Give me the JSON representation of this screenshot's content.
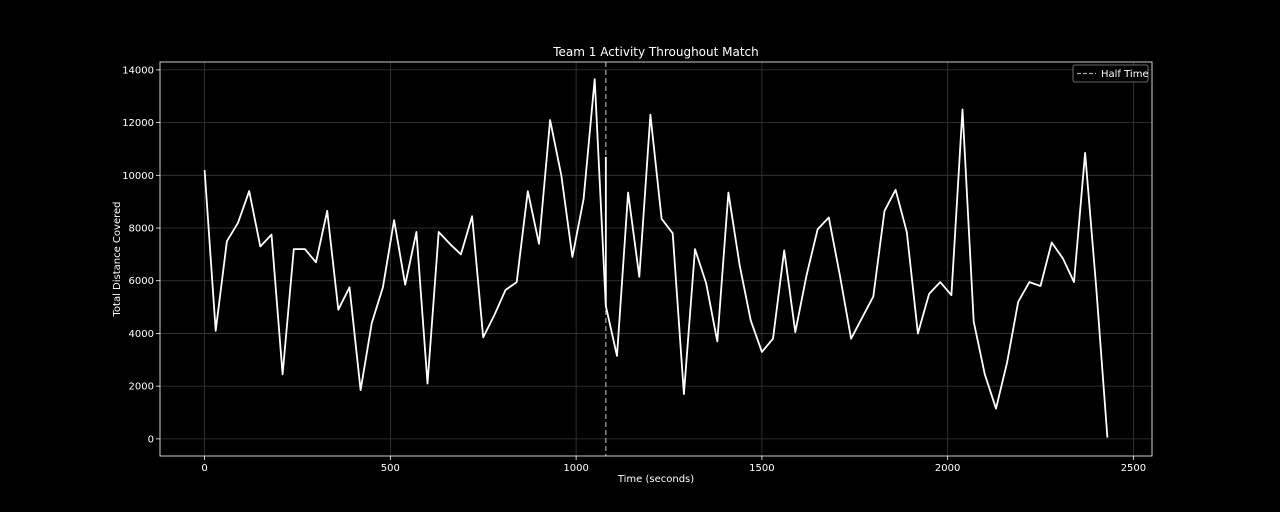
{
  "chart_data": {
    "type": "line",
    "title": "Team 1 Activity Throughout Match",
    "xlabel": "Time (seconds)",
    "ylabel": "Total Distance Covered",
    "xlim": [
      -120,
      2550
    ],
    "ylim": [
      -650,
      14300
    ],
    "xticks": [
      0,
      500,
      1000,
      1500,
      2000,
      2500
    ],
    "yticks": [
      0,
      2000,
      4000,
      6000,
      8000,
      10000,
      12000,
      14000
    ],
    "grid": true,
    "legend_position": "top-right",
    "colors": {
      "background": "#000000",
      "line": "#ffffff",
      "grid": "#3a3a3a",
      "half_time": "#aaaaaa"
    },
    "series": [
      {
        "x": [
          0,
          30,
          60,
          90,
          120,
          150,
          180,
          210,
          240,
          270,
          300,
          330,
          360,
          390,
          420,
          450,
          480,
          510,
          540,
          570,
          600,
          630,
          660,
          690,
          720,
          750,
          780,
          810,
          840,
          870,
          900,
          930,
          960,
          990,
          1020,
          1050,
          1080,
          1110,
          1140,
          1170,
          1200,
          1230,
          1260,
          1290,
          1320,
          1350,
          1380,
          1410,
          1440,
          1470,
          1500,
          1530,
          1560,
          1590,
          1620,
          1650,
          1680,
          1710,
          1740,
          1770,
          1800,
          1830,
          1860,
          1890,
          1920,
          1950,
          1980,
          2010,
          2040,
          2070,
          2100,
          2130,
          2160,
          2190,
          2220,
          2250,
          2280,
          2310,
          2340,
          2370,
          2400,
          2430
        ],
        "values": [
          10200,
          4100,
          7500,
          8200,
          9400,
          7300,
          7750,
          2450,
          7200,
          7200,
          6700,
          8650,
          4900,
          5750,
          1850,
          4400,
          5750,
          8300,
          5850,
          7850,
          2100,
          7850,
          7400,
          7000,
          8450,
          3850,
          4700,
          5650,
          5950,
          9400,
          7400,
          12100,
          10000,
          6900,
          9100,
          13650,
          5050,
          3150,
          9350,
          6150,
          12300,
          8350,
          7800,
          1700,
          7200,
          5900,
          3700,
          9350,
          6600,
          4500,
          3300,
          3800,
          7150,
          4050,
          6200,
          7950,
          8400,
          6200,
          3800,
          4600,
          5400,
          8650,
          9450,
          7850,
          4000,
          5500,
          5950,
          5450,
          12500,
          4450,
          2450,
          1150,
          2900,
          5200,
          5950,
          5800,
          7450,
          6850,
          5950,
          10850,
          5700,
          50
        ]
      }
    ],
    "half_time_overlay": {
      "x": 1080,
      "values": [
        10700,
        5000
      ],
      "line_label": "Half Time"
    }
  }
}
